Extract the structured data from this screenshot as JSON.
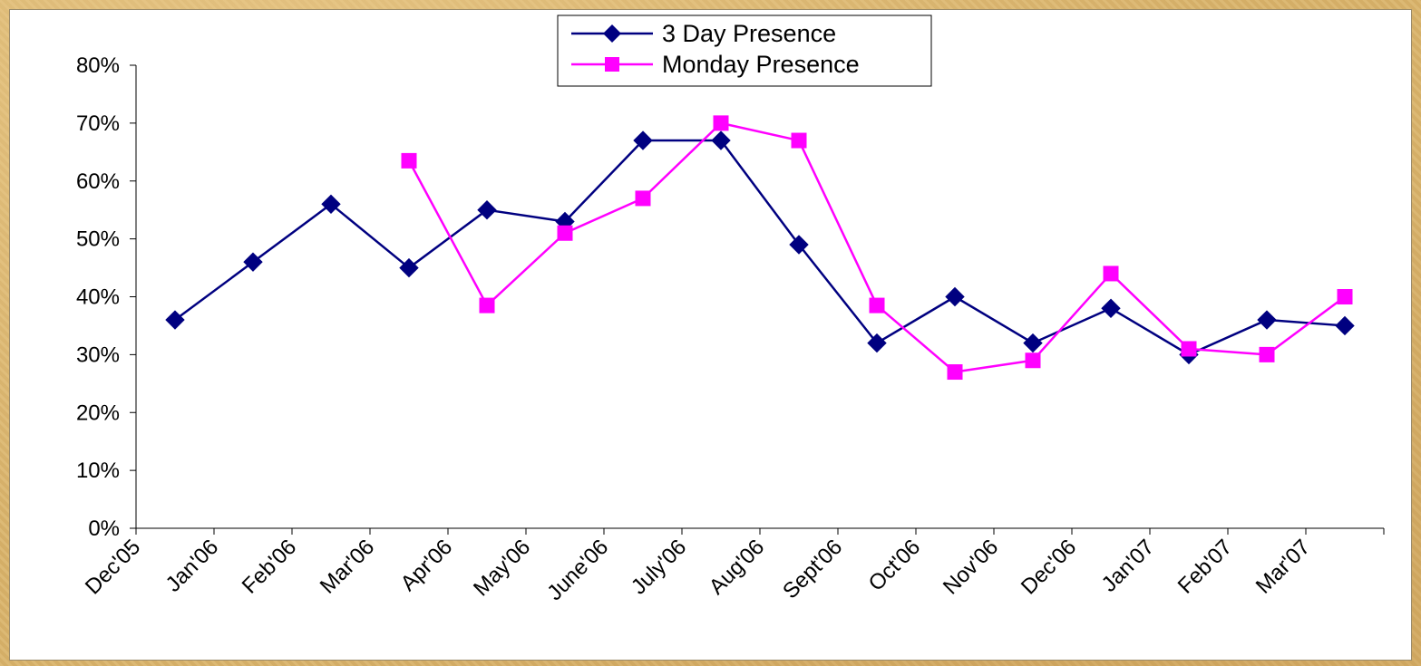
{
  "chart_data": {
    "type": "line",
    "categories": [
      "Dec'05",
      "Jan'06",
      "Feb'06",
      "Mar'06",
      "Apr'06",
      "May'06",
      "June'06",
      "July'06",
      "Aug'06",
      "Sept'06",
      "Oct'06",
      "Nov'06",
      "Dec'06",
      "Jan'07",
      "Feb'07",
      "Mar'07"
    ],
    "series": [
      {
        "name": "3 Day Presence",
        "color": "#000080",
        "marker": "diamond",
        "values": [
          36,
          46,
          56,
          45,
          55,
          53,
          67,
          67,
          49,
          32,
          40,
          32,
          38,
          30,
          36,
          35
        ]
      },
      {
        "name": "Monday Presence",
        "color": "#ff00ff",
        "marker": "square",
        "values": [
          null,
          null,
          null,
          63.5,
          38.5,
          51,
          57,
          70,
          67,
          38.5,
          27,
          29,
          44,
          31,
          30,
          40
        ]
      }
    ],
    "yticks": [
      "0%",
      "10%",
      "20%",
      "30%",
      "40%",
      "50%",
      "60%",
      "70%",
      "80%"
    ],
    "ylim": [
      0,
      80
    ],
    "ylabel": "",
    "xlabel": "",
    "title": "",
    "grid": false,
    "legend": "top-center"
  }
}
